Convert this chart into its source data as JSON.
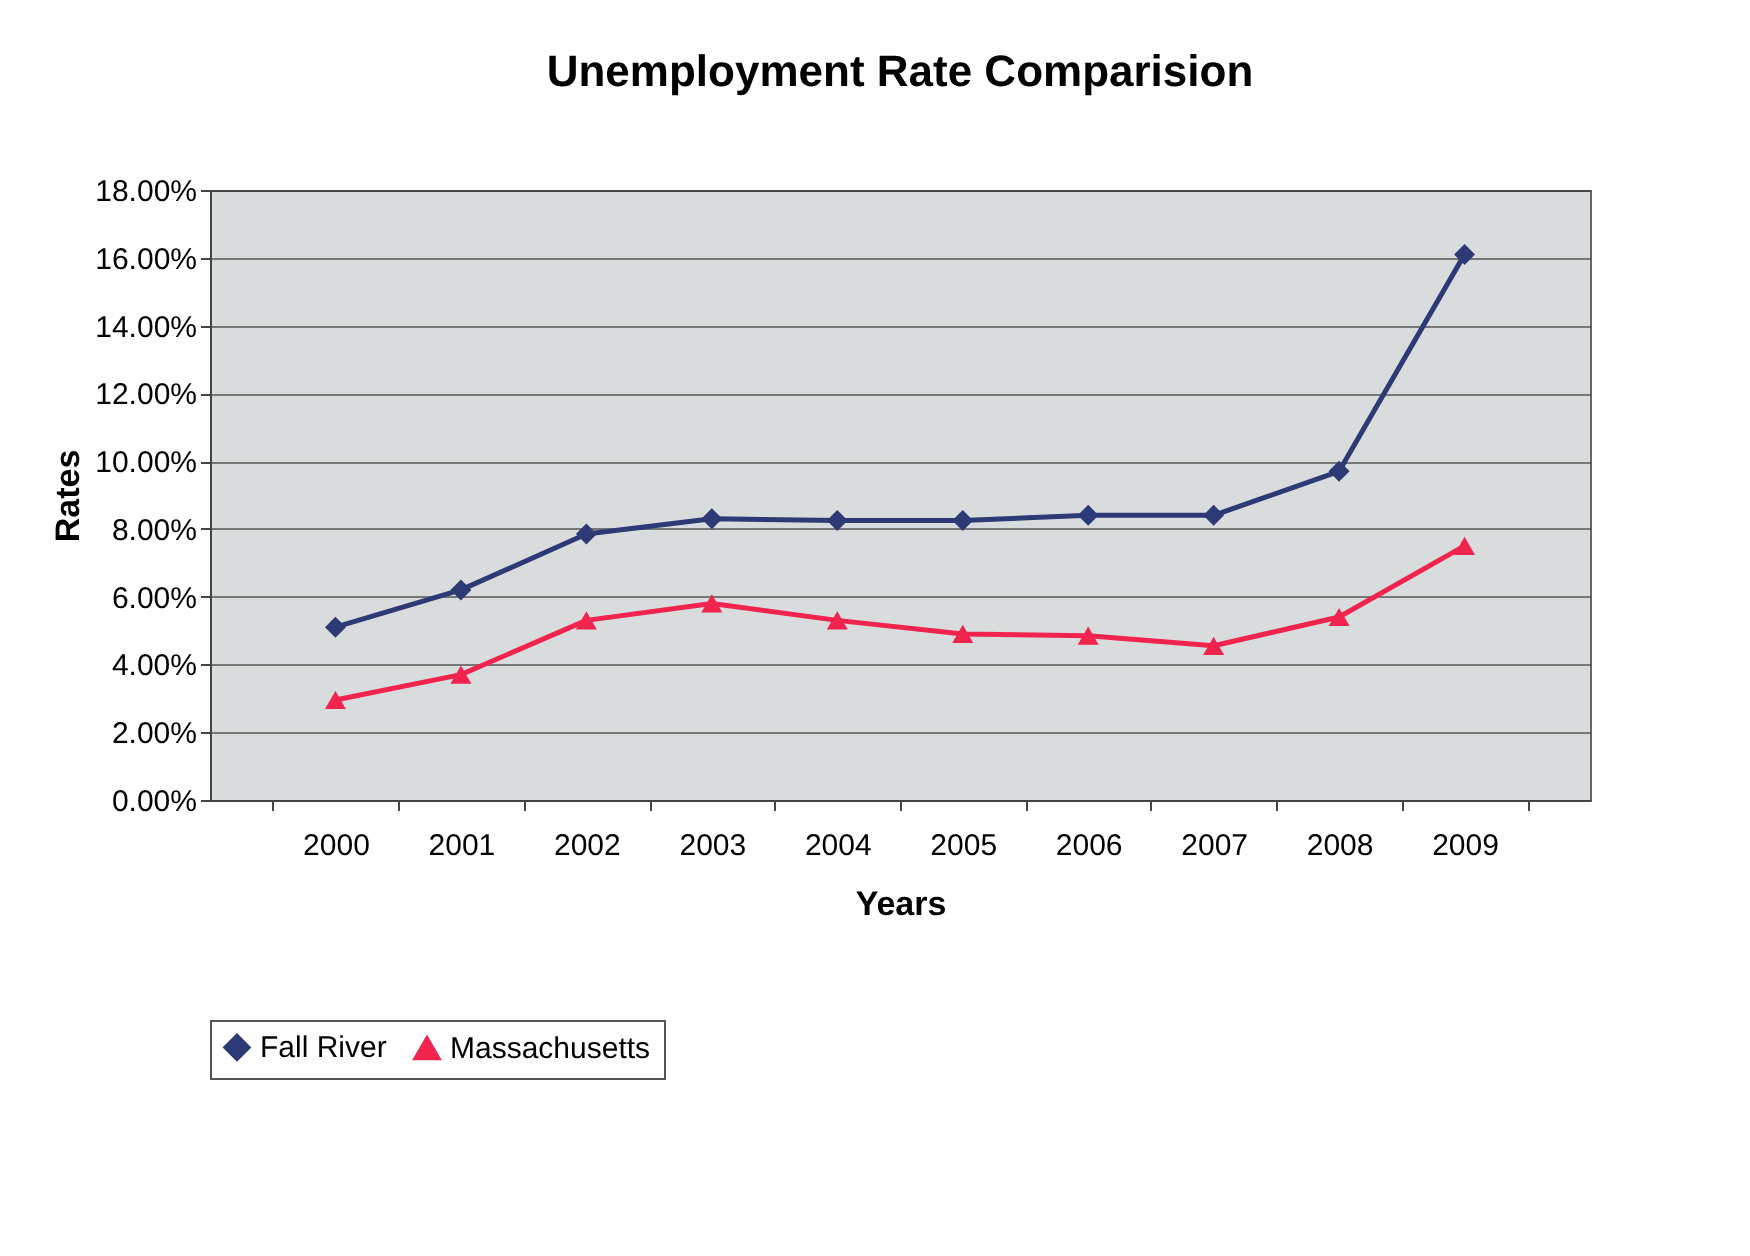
{
  "chart_data": {
    "type": "line",
    "title": "Unemployment Rate Comparision",
    "xlabel": "Years",
    "ylabel": "Rates",
    "categories": [
      "2000",
      "2001",
      "2002",
      "2003",
      "2004",
      "2005",
      "2006",
      "2007",
      "2008",
      "2009"
    ],
    "series": [
      {
        "name": "Fall River",
        "color": "#2e3a75",
        "marker": "diamond",
        "values": [
          5.1,
          6.2,
          7.85,
          8.3,
          8.25,
          8.25,
          8.4,
          8.4,
          9.7,
          16.1
        ]
      },
      {
        "name": "Massachusetts",
        "color": "#f0244e",
        "marker": "triangle",
        "values": [
          2.95,
          3.7,
          5.3,
          5.8,
          5.3,
          4.9,
          4.85,
          4.55,
          5.4,
          7.5
        ]
      }
    ],
    "ylim": [
      0,
      18
    ],
    "yticks": [
      {
        "value": 0,
        "label": "0.00%"
      },
      {
        "value": 2,
        "label": "2.00%"
      },
      {
        "value": 4,
        "label": "4.00%"
      },
      {
        "value": 6,
        "label": "6.00%"
      },
      {
        "value": 8,
        "label": "8.00%"
      },
      {
        "value": 10,
        "label": "10.00%"
      },
      {
        "value": 12,
        "label": "12.00%"
      },
      {
        "value": 14,
        "label": "14.00%"
      },
      {
        "value": 16,
        "label": "16.00%"
      },
      {
        "value": 18,
        "label": "18.00%"
      }
    ],
    "grid": "y",
    "legend": "bottom",
    "line_style": "solid"
  }
}
